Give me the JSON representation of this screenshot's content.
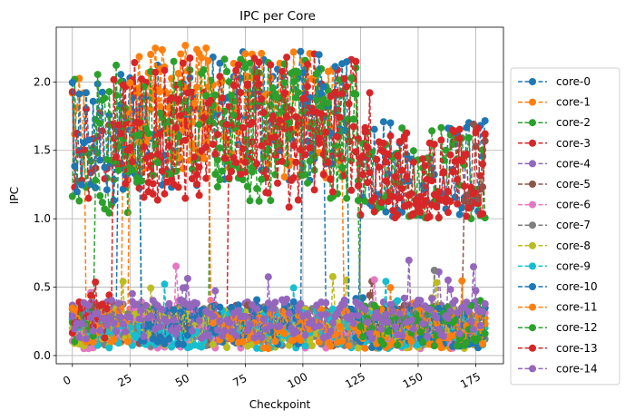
{
  "chart_data": {
    "type": "line",
    "title": "IPC per Core",
    "xlabel": "Checkpoint",
    "ylabel": "IPC",
    "xlim": [
      -7,
      187
    ],
    "ylim": [
      -0.06,
      2.4
    ],
    "x_ticks": [
      0,
      25,
      50,
      75,
      100,
      125,
      150,
      175
    ],
    "y_ticks": [
      0.0,
      0.5,
      1.0,
      1.5,
      2.0
    ],
    "x_tick_labels": [
      "0",
      "25",
      "50",
      "75",
      "100",
      "125",
      "150",
      "175"
    ],
    "y_tick_labels": [
      "0.0",
      "0.5",
      "1.0",
      "1.5",
      "2.0"
    ],
    "grid": true,
    "legend_position": "outside-right",
    "line_style": "dashed",
    "marker": "circle",
    "n_checkpoints": 180,
    "series": [
      {
        "name": "core-0",
        "color": "#1f77b4",
        "segments": [
          [
            0,
            20,
            "low",
            0.22
          ],
          [
            20,
            55,
            "high",
            1.7
          ],
          [
            55,
            110,
            "high",
            1.75
          ],
          [
            110,
            125,
            "low",
            0.25
          ],
          [
            125,
            180,
            "high",
            1.25
          ]
        ]
      },
      {
        "name": "core-1",
        "color": "#ff7f0e",
        "segments": [
          [
            0,
            6,
            "high",
            1.65
          ],
          [
            6,
            22,
            "low",
            0.2
          ],
          [
            22,
            75,
            "high",
            1.8
          ],
          [
            75,
            118,
            "high",
            1.75
          ],
          [
            118,
            180,
            "low",
            0.2
          ]
        ]
      },
      {
        "name": "core-2",
        "color": "#2ca02c",
        "segments": [
          [
            0,
            8,
            "high",
            1.6
          ],
          [
            8,
            30,
            "high",
            1.45
          ],
          [
            30,
            60,
            "low",
            0.22
          ],
          [
            60,
            125,
            "high",
            1.7
          ],
          [
            125,
            180,
            "high",
            1.22
          ]
        ]
      },
      {
        "name": "core-3",
        "color": "#d62728",
        "segments": [
          [
            0,
            60,
            "high",
            1.6
          ],
          [
            60,
            68,
            "low",
            0.25
          ],
          [
            68,
            125,
            "high",
            1.75
          ],
          [
            125,
            180,
            "high",
            1.2
          ]
        ]
      },
      {
        "name": "core-4",
        "color": "#9467bd",
        "segments": [
          [
            0,
            180,
            "low",
            0.25
          ]
        ]
      },
      {
        "name": "core-5",
        "color": "#8c564b",
        "segments": [
          [
            0,
            170,
            "low",
            0.22
          ],
          [
            170,
            180,
            "high",
            1.25
          ]
        ]
      },
      {
        "name": "core-6",
        "color": "#e377c2",
        "segments": [
          [
            0,
            180,
            "low",
            0.2
          ]
        ]
      },
      {
        "name": "core-7",
        "color": "#7f7f7f",
        "segments": [
          [
            0,
            180,
            "low",
            0.22
          ]
        ]
      },
      {
        "name": "core-8",
        "color": "#bcbd22",
        "segments": [
          [
            0,
            180,
            "low",
            0.2
          ]
        ]
      },
      {
        "name": "core-9",
        "color": "#17becf",
        "segments": [
          [
            0,
            180,
            "low",
            0.18
          ]
        ]
      },
      {
        "name": "core-10",
        "color": "#1f77b4",
        "segments": [
          [
            0,
            30,
            "high",
            1.55
          ],
          [
            30,
            100,
            "low",
            0.22
          ],
          [
            100,
            120,
            "high",
            1.8
          ],
          [
            120,
            180,
            "low",
            0.2
          ]
        ]
      },
      {
        "name": "core-11",
        "color": "#ff7f0e",
        "segments": [
          [
            0,
            25,
            "low",
            0.2
          ],
          [
            25,
            60,
            "high",
            1.8
          ],
          [
            60,
            180,
            "low",
            0.18
          ]
        ]
      },
      {
        "name": "core-12",
        "color": "#2ca02c",
        "segments": [
          [
            0,
            10,
            "low",
            0.22
          ],
          [
            10,
            70,
            "high",
            1.7
          ],
          [
            70,
            125,
            "high",
            1.6
          ],
          [
            125,
            180,
            "low",
            0.22
          ]
        ]
      },
      {
        "name": "core-13",
        "color": "#d62728",
        "segments": [
          [
            0,
            18,
            "low",
            0.25
          ],
          [
            18,
            80,
            "high",
            1.7
          ],
          [
            80,
            130,
            "high",
            1.55
          ],
          [
            130,
            180,
            "high",
            1.2
          ]
        ]
      },
      {
        "name": "core-14",
        "color": "#9467bd",
        "segments": [
          [
            0,
            180,
            "low",
            0.27
          ]
        ]
      }
    ]
  }
}
